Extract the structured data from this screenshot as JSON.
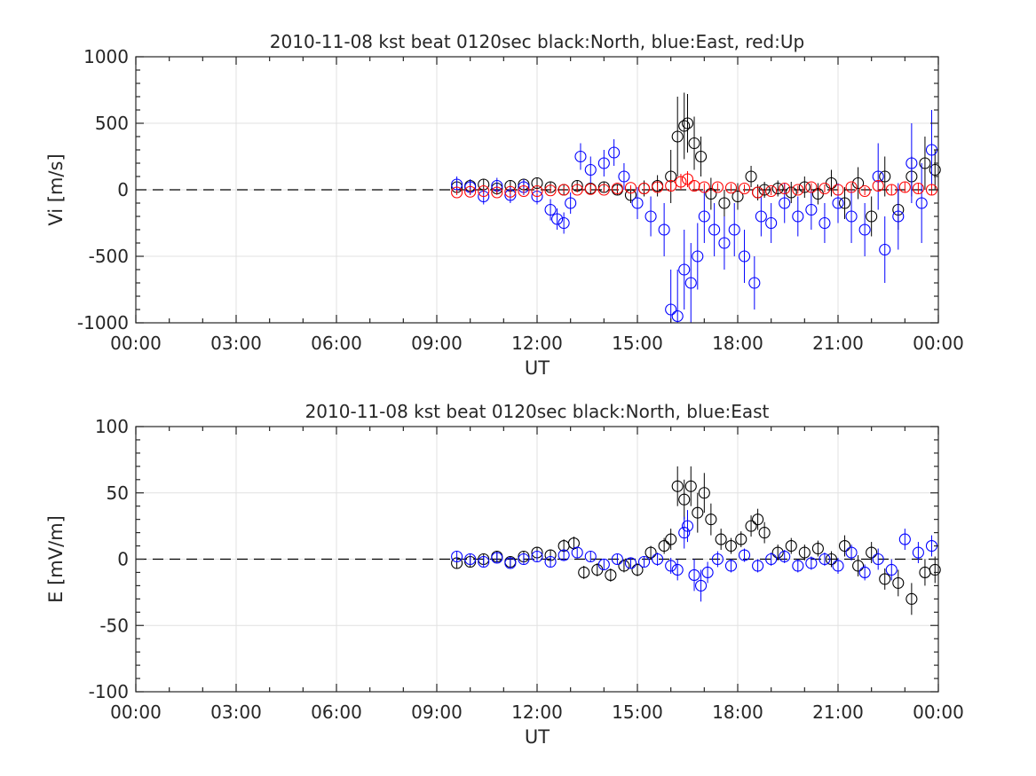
{
  "chart_data": [
    {
      "type": "scatter",
      "title": "2010-11-08 kst beat 0120sec black:North, blue:East, red:Up",
      "xlabel": "UT",
      "ylabel": "Vi [m/s]",
      "xlim": [
        0,
        24
      ],
      "ylim": [
        -1000,
        1000
      ],
      "xticks": [
        "00:00",
        "03:00",
        "06:00",
        "09:00",
        "12:00",
        "15:00",
        "18:00",
        "21:00",
        "00:00"
      ],
      "yticks": [
        "1000",
        "500",
        "0",
        "-500",
        "-1000"
      ],
      "grid": true,
      "zero_line": "dashed",
      "series": [
        {
          "name": "North",
          "color": "#000000",
          "x": [
            9.6,
            10.0,
            10.4,
            10.8,
            11.2,
            11.6,
            12.0,
            12.4,
            12.8,
            13.2,
            13.6,
            14.0,
            14.4,
            14.8,
            15.2,
            15.6,
            16.0,
            16.2,
            16.4,
            16.5,
            16.7,
            16.9,
            17.2,
            17.6,
            18.0,
            18.4,
            18.6,
            18.8,
            19.2,
            19.6,
            20.0,
            20.4,
            20.8,
            21.2,
            21.6,
            22.0,
            22.4,
            22.8,
            23.2,
            23.6,
            23.9
          ],
          "y": [
            20,
            30,
            40,
            10,
            30,
            40,
            50,
            20,
            0,
            30,
            10,
            20,
            0,
            -40,
            10,
            30,
            100,
            400,
            480,
            500,
            350,
            250,
            -30,
            -100,
            -50,
            100,
            -20,
            0,
            10,
            -20,
            20,
            -30,
            50,
            -100,
            50,
            -200,
            100,
            -150,
            100,
            200,
            150
          ],
          "err": [
            40,
            40,
            40,
            40,
            40,
            40,
            40,
            40,
            40,
            40,
            40,
            40,
            40,
            60,
            60,
            80,
            200,
            300,
            250,
            220,
            200,
            150,
            120,
            100,
            100,
            80,
            60,
            60,
            60,
            80,
            80,
            80,
            100,
            120,
            120,
            150,
            150,
            150,
            150,
            200,
            150
          ]
        },
        {
          "name": "East",
          "color": "#0000ff",
          "x": [
            9.6,
            10.0,
            10.4,
            10.8,
            11.2,
            11.6,
            12.0,
            12.4,
            12.6,
            12.8,
            13.0,
            13.3,
            13.6,
            14.0,
            14.3,
            14.6,
            15.0,
            15.4,
            15.8,
            16.0,
            16.2,
            16.4,
            16.6,
            16.8,
            17.0,
            17.3,
            17.6,
            17.9,
            18.2,
            18.5,
            18.7,
            19.0,
            19.4,
            19.8,
            20.2,
            20.6,
            21.0,
            21.4,
            21.8,
            22.2,
            22.4,
            22.8,
            23.2,
            23.5,
            23.8
          ],
          "y": [
            40,
            20,
            -50,
            30,
            -40,
            20,
            -50,
            -150,
            -220,
            -250,
            -100,
            250,
            150,
            200,
            280,
            100,
            -100,
            -200,
            -300,
            -900,
            -950,
            -600,
            -700,
            -500,
            -200,
            -300,
            -400,
            -300,
            -500,
            -700,
            -200,
            -250,
            -100,
            -200,
            -150,
            -250,
            -100,
            -200,
            -300,
            100,
            -450,
            -200,
            200,
            -100,
            300
          ],
          "err": [
            60,
            60,
            60,
            60,
            60,
            60,
            60,
            80,
            80,
            80,
            80,
            100,
            100,
            100,
            100,
            100,
            120,
            150,
            200,
            300,
            350,
            300,
            300,
            250,
            200,
            200,
            200,
            200,
            200,
            200,
            150,
            150,
            150,
            150,
            150,
            150,
            150,
            200,
            200,
            250,
            250,
            250,
            300,
            300,
            300
          ]
        },
        {
          "name": "Up",
          "color": "#ff0000",
          "x": [
            9.6,
            10.0,
            10.4,
            10.8,
            11.2,
            11.6,
            12.0,
            12.4,
            12.8,
            13.2,
            13.6,
            14.0,
            14.4,
            14.8,
            15.2,
            15.6,
            16.0,
            16.3,
            16.5,
            16.7,
            17.0,
            17.4,
            17.8,
            18.2,
            18.6,
            19.0,
            19.4,
            19.8,
            20.2,
            20.6,
            21.0,
            21.4,
            21.8,
            22.2,
            22.6,
            23.0,
            23.4,
            23.8
          ],
          "y": [
            -20,
            -15,
            -10,
            -20,
            -15,
            -10,
            -10,
            -5,
            0,
            0,
            5,
            0,
            10,
            15,
            10,
            20,
            30,
            60,
            80,
            30,
            20,
            20,
            15,
            10,
            -20,
            -10,
            10,
            0,
            20,
            10,
            0,
            20,
            -10,
            30,
            0,
            20,
            10,
            0
          ],
          "err": [
            20,
            20,
            20,
            20,
            20,
            20,
            20,
            20,
            20,
            20,
            20,
            20,
            20,
            20,
            20,
            25,
            40,
            60,
            60,
            40,
            30,
            30,
            30,
            30,
            30,
            30,
            30,
            30,
            30,
            30,
            30,
            30,
            30,
            40,
            40,
            40,
            40,
            40
          ]
        }
      ]
    },
    {
      "type": "scatter",
      "title": "2010-11-08 kst beat 0120sec black:North, blue:East",
      "xlabel": "UT",
      "ylabel": "E [mV/m]",
      "xlim": [
        0,
        24
      ],
      "ylim": [
        -100,
        100
      ],
      "xticks": [
        "00:00",
        "03:00",
        "06:00",
        "09:00",
        "12:00",
        "15:00",
        "18:00",
        "21:00",
        "00:00"
      ],
      "yticks": [
        "100",
        "50",
        "0",
        "-50",
        "-100"
      ],
      "grid": true,
      "zero_line": "dashed",
      "series": [
        {
          "name": "North",
          "color": "#000000",
          "x": [
            9.6,
            10.0,
            10.4,
            10.8,
            11.2,
            11.6,
            12.0,
            12.4,
            12.8,
            13.1,
            13.4,
            13.8,
            14.2,
            14.6,
            15.0,
            15.4,
            15.8,
            16.0,
            16.2,
            16.4,
            16.6,
            16.8,
            17.0,
            17.2,
            17.5,
            17.8,
            18.1,
            18.4,
            18.6,
            18.8,
            19.2,
            19.6,
            20.0,
            20.4,
            20.8,
            21.2,
            21.6,
            22.0,
            22.4,
            22.8,
            23.2,
            23.6,
            23.9
          ],
          "y": [
            -3,
            -2,
            0,
            2,
            -2,
            2,
            5,
            3,
            10,
            12,
            -10,
            -8,
            -12,
            -5,
            -8,
            5,
            10,
            15,
            55,
            45,
            55,
            35,
            50,
            30,
            15,
            10,
            15,
            25,
            30,
            20,
            5,
            10,
            5,
            8,
            0,
            10,
            -5,
            5,
            -15,
            -18,
            -30,
            -10,
            -8
          ],
          "err": [
            4,
            4,
            4,
            4,
            4,
            4,
            4,
            4,
            5,
            5,
            5,
            5,
            5,
            5,
            5,
            5,
            6,
            8,
            15,
            15,
            15,
            15,
            15,
            12,
            8,
            6,
            6,
            8,
            8,
            8,
            6,
            6,
            6,
            6,
            6,
            8,
            8,
            8,
            8,
            10,
            12,
            10,
            10
          ]
        },
        {
          "name": "East",
          "color": "#0000ff",
          "x": [
            9.6,
            10.0,
            10.4,
            10.8,
            11.2,
            11.6,
            12.0,
            12.4,
            12.8,
            13.2,
            13.6,
            14.0,
            14.4,
            14.8,
            15.2,
            15.6,
            16.0,
            16.2,
            16.4,
            16.5,
            16.7,
            16.9,
            17.1,
            17.4,
            17.8,
            18.2,
            18.6,
            19.0,
            19.4,
            19.8,
            20.2,
            20.6,
            21.0,
            21.4,
            21.8,
            22.2,
            22.6,
            23.0,
            23.4,
            23.8
          ],
          "y": [
            2,
            0,
            -2,
            1,
            -3,
            0,
            2,
            -2,
            3,
            5,
            2,
            -4,
            0,
            -3,
            -2,
            0,
            -5,
            -8,
            20,
            25,
            -12,
            -20,
            -10,
            0,
            -5,
            3,
            -5,
            0,
            2,
            -5,
            -3,
            0,
            -5,
            5,
            -10,
            0,
            -8,
            15,
            5,
            10
          ],
          "err": [
            4,
            4,
            4,
            4,
            4,
            4,
            4,
            4,
            4,
            4,
            4,
            4,
            4,
            4,
            4,
            5,
            6,
            8,
            12,
            12,
            12,
            12,
            8,
            6,
            5,
            5,
            5,
            5,
            5,
            5,
            5,
            5,
            6,
            6,
            6,
            8,
            8,
            8,
            8,
            8
          ]
        }
      ]
    }
  ]
}
